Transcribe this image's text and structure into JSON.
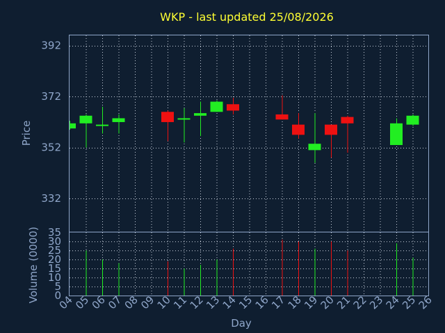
{
  "colors": {
    "background": "#0f1e30",
    "title": "#ffff33",
    "axis": "#8fa6c9",
    "up": "#22ee22",
    "down": "#ee1111"
  },
  "chart_data": [
    {
      "type": "candlestick",
      "title": "WKP - last updated 25/08/2026",
      "ylabel": "Price",
      "xlabel": "",
      "ylim": [
        319,
        396
      ],
      "yticks": [
        332,
        352,
        372,
        392
      ],
      "grid": true,
      "x_categories": [
        "04",
        "05",
        "06",
        "07",
        "08",
        "09",
        "10",
        "11",
        "12",
        "13",
        "14",
        "15",
        "16",
        "17",
        "18",
        "19",
        "20",
        "21",
        "22",
        "23",
        "24",
        "25",
        "26"
      ],
      "candles": [
        {
          "day": "04",
          "open": 359.5,
          "close": 361.5,
          "high": 362.5,
          "low": 359.0
        },
        {
          "day": "05",
          "open": 361.5,
          "close": 364.5,
          "high": 365.0,
          "low": 352.0
        },
        {
          "day": "06",
          "open": 360.5,
          "close": 361.0,
          "high": 368.0,
          "low": 357.5
        },
        {
          "day": "07",
          "open": 362.0,
          "close": 363.5,
          "high": 365.0,
          "low": 357.5
        },
        {
          "day": "10",
          "open": 366.0,
          "close": 362.0,
          "high": 366.5,
          "low": 354.5
        },
        {
          "day": "11",
          "open": 363.0,
          "close": 363.5,
          "high": 367.5,
          "low": 354.0
        },
        {
          "day": "12",
          "open": 364.5,
          "close": 365.5,
          "high": 370.0,
          "low": 356.5
        },
        {
          "day": "13",
          "open": 366.0,
          "close": 370.0,
          "high": 370.5,
          "low": 366.0
        },
        {
          "day": "14",
          "open": 369.0,
          "close": 366.5,
          "high": 371.5,
          "low": 365.0
        },
        {
          "day": "17",
          "open": 365.0,
          "close": 363.0,
          "high": 372.5,
          "low": 363.0
        },
        {
          "day": "18",
          "open": 361.0,
          "close": 357.0,
          "high": 365.5,
          "low": 355.5
        },
        {
          "day": "19",
          "open": 351.0,
          "close": 353.5,
          "high": 365.5,
          "low": 346.0
        },
        {
          "day": "20",
          "open": 361.0,
          "close": 357.0,
          "high": 361.0,
          "low": 348.0
        },
        {
          "day": "21",
          "open": 364.0,
          "close": 361.5,
          "high": 364.5,
          "low": 350.0
        },
        {
          "day": "24",
          "open": 353.0,
          "close": 361.5,
          "high": 363.5,
          "low": 353.0
        },
        {
          "day": "25",
          "open": 361.0,
          "close": 364.5,
          "high": 365.0,
          "low": 360.5
        }
      ]
    },
    {
      "type": "bar",
      "ylabel": "Volume (0000)",
      "xlabel": "Day",
      "ylim": [
        0,
        35
      ],
      "yticks": [
        0,
        5,
        10,
        15,
        20,
        25,
        30,
        35
      ],
      "grid": true,
      "categories": [
        "04",
        "05",
        "06",
        "07",
        "08",
        "09",
        "10",
        "11",
        "12",
        "13",
        "14",
        "15",
        "16",
        "17",
        "18",
        "19",
        "20",
        "21",
        "22",
        "23",
        "24",
        "25",
        "26"
      ],
      "bars": [
        {
          "day": "05",
          "value": 25,
          "direction": "up"
        },
        {
          "day": "06",
          "value": 20,
          "direction": "up"
        },
        {
          "day": "07",
          "value": 18,
          "direction": "up"
        },
        {
          "day": "10",
          "value": 19,
          "direction": "down"
        },
        {
          "day": "11",
          "value": 15,
          "direction": "up"
        },
        {
          "day": "12",
          "value": 17,
          "direction": "up"
        },
        {
          "day": "13",
          "value": 20,
          "direction": "up"
        },
        {
          "day": "14",
          "value": 26,
          "direction": "down"
        },
        {
          "day": "17",
          "value": 31,
          "direction": "down"
        },
        {
          "day": "18",
          "value": 30,
          "direction": "down"
        },
        {
          "day": "19",
          "value": 26,
          "direction": "up"
        },
        {
          "day": "20",
          "value": 30,
          "direction": "down"
        },
        {
          "day": "21",
          "value": 25,
          "direction": "down"
        },
        {
          "day": "24",
          "value": 29,
          "direction": "up"
        },
        {
          "day": "25",
          "value": 21,
          "direction": "up"
        }
      ]
    }
  ]
}
